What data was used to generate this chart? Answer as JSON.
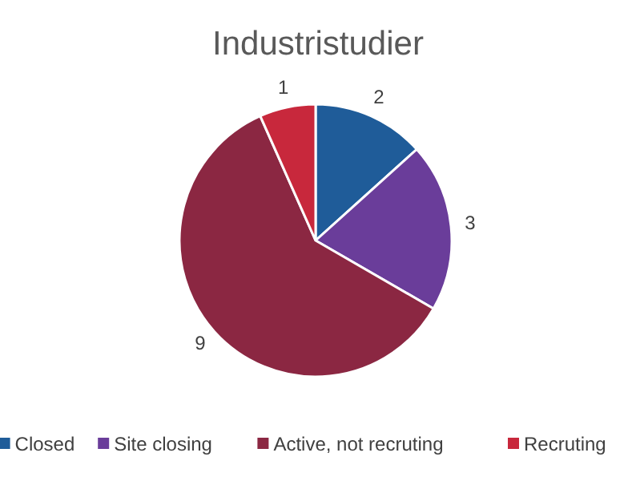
{
  "chart_data": {
    "type": "pie",
    "title": "Industristudier",
    "categories": [
      "Closed",
      "Site closing",
      "Active, not recruting",
      "Recruting"
    ],
    "values": [
      2,
      3,
      9,
      1
    ],
    "colors": [
      "#1f5c99",
      "#6a3d9a",
      "#8b2742",
      "#c8283c"
    ],
    "data_labels": true,
    "legend": "bottom"
  }
}
